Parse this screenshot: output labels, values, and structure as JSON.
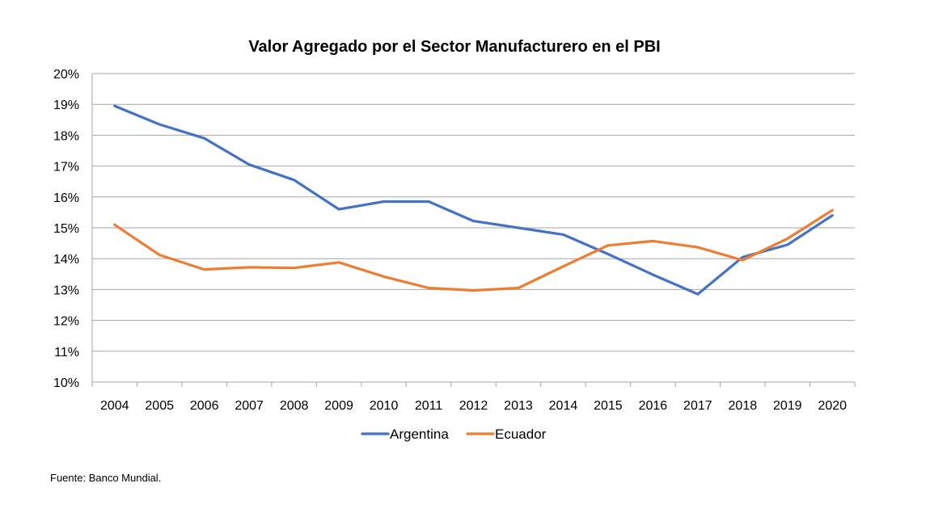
{
  "chart_data": {
    "type": "line",
    "title": "Valor Agregado por el Sector Manufacturero en el PBI",
    "xlabel": "",
    "ylabel": "",
    "x": [
      "2004",
      "2005",
      "2006",
      "2007",
      "2008",
      "2009",
      "2010",
      "2011",
      "2012",
      "2013",
      "2014",
      "2015",
      "2016",
      "2017",
      "2018",
      "2019",
      "2020"
    ],
    "ylim": [
      10,
      20
    ],
    "yticks": [
      10,
      11,
      12,
      13,
      14,
      15,
      16,
      17,
      18,
      19,
      20
    ],
    "ytick_format": "%",
    "grid": true,
    "legend_position": "bottom",
    "series": [
      {
        "name": "Argentina",
        "color": "#4472C4",
        "values": [
          18.95,
          18.35,
          17.9,
          17.05,
          16.55,
          15.6,
          15.85,
          15.85,
          15.22,
          15.0,
          14.78,
          14.15,
          13.48,
          12.85,
          14.05,
          14.45,
          15.4
        ]
      },
      {
        "name": "Ecuador",
        "color": "#ED7D31",
        "values": [
          15.1,
          14.12,
          13.65,
          13.72,
          13.7,
          13.88,
          13.42,
          13.05,
          12.97,
          13.05,
          13.75,
          14.43,
          14.57,
          14.37,
          13.95,
          14.65,
          15.57
        ]
      }
    ]
  },
  "source_note": "Fuente: Banco Mundial."
}
